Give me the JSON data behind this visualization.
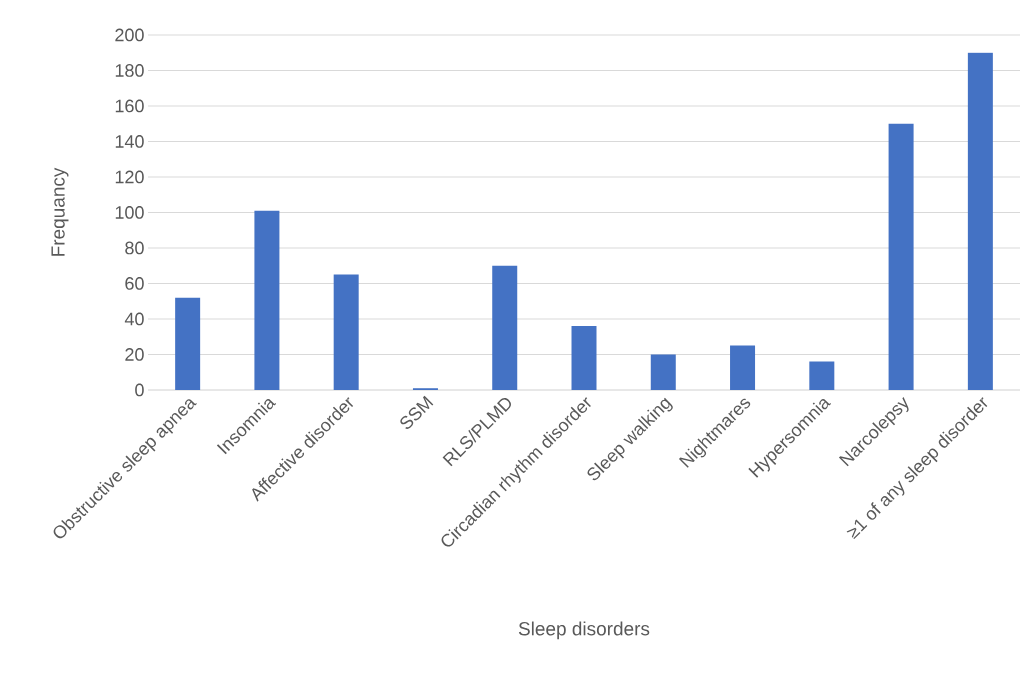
{
  "chart_data": {
    "type": "bar",
    "xlabel": "Sleep disorders",
    "ylabel": "Frequancy",
    "categories": [
      "Obstructive sleep apnea",
      "Insomnia",
      "Affective disorder",
      "SSM",
      "RLS/PLMD",
      "Circadian rhythm disorder",
      "Sleep walking",
      "Nightmares",
      "Hypersomnia",
      "Narcolepsy",
      "≥1 of any sleep disorder"
    ],
    "values": [
      52,
      101,
      65,
      1,
      70,
      36,
      20,
      25,
      16,
      150,
      190
    ],
    "color": "#4472c4",
    "ylim": [
      0,
      200
    ],
    "yticks": [
      0,
      20,
      40,
      60,
      80,
      100,
      120,
      140,
      160,
      180,
      200
    ],
    "grid": "y"
  }
}
